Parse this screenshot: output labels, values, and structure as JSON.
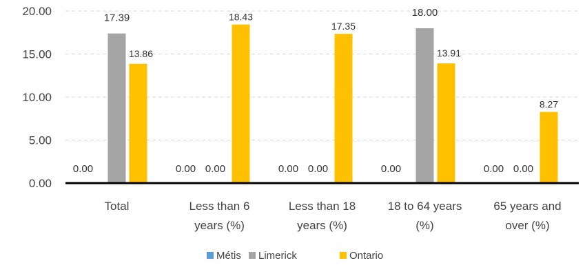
{
  "chart_data": {
    "type": "bar",
    "categories": [
      [
        "Total"
      ],
      [
        "Less than 6",
        "years (%)"
      ],
      [
        "Less than 18",
        "years (%)"
      ],
      [
        "18 to 64 years",
        "(%)"
      ],
      [
        "65 years and",
        "over (%)"
      ]
    ],
    "series": [
      {
        "name": "Métis",
        "color": "#5b9bd5",
        "values": [
          0.0,
          0.0,
          0.0,
          0.0,
          0.0
        ],
        "labels": [
          "0.00",
          "0.00",
          "0.00",
          "0.00",
          "0.00"
        ]
      },
      {
        "name": "Limerick",
        "color": "#a5a5a5",
        "values": [
          17.39,
          0.0,
          0.0,
          18.0,
          0.0
        ],
        "labels": [
          "17.39",
          "0.00",
          "0.00",
          "18.00",
          "0.00"
        ]
      },
      {
        "name": "Ontario",
        "color": "#ffc000",
        "values": [
          13.86,
          18.43,
          17.35,
          13.91,
          8.27
        ],
        "labels": [
          "13.86",
          "18.43",
          "17.35",
          "13.91",
          "8.27"
        ]
      }
    ],
    "yticks": [
      "0.00",
      "5.00",
      "10.00",
      "15.00",
      "20.00"
    ],
    "ylim": [
      0,
      20
    ],
    "grid": true,
    "legend_position": "bottom"
  }
}
